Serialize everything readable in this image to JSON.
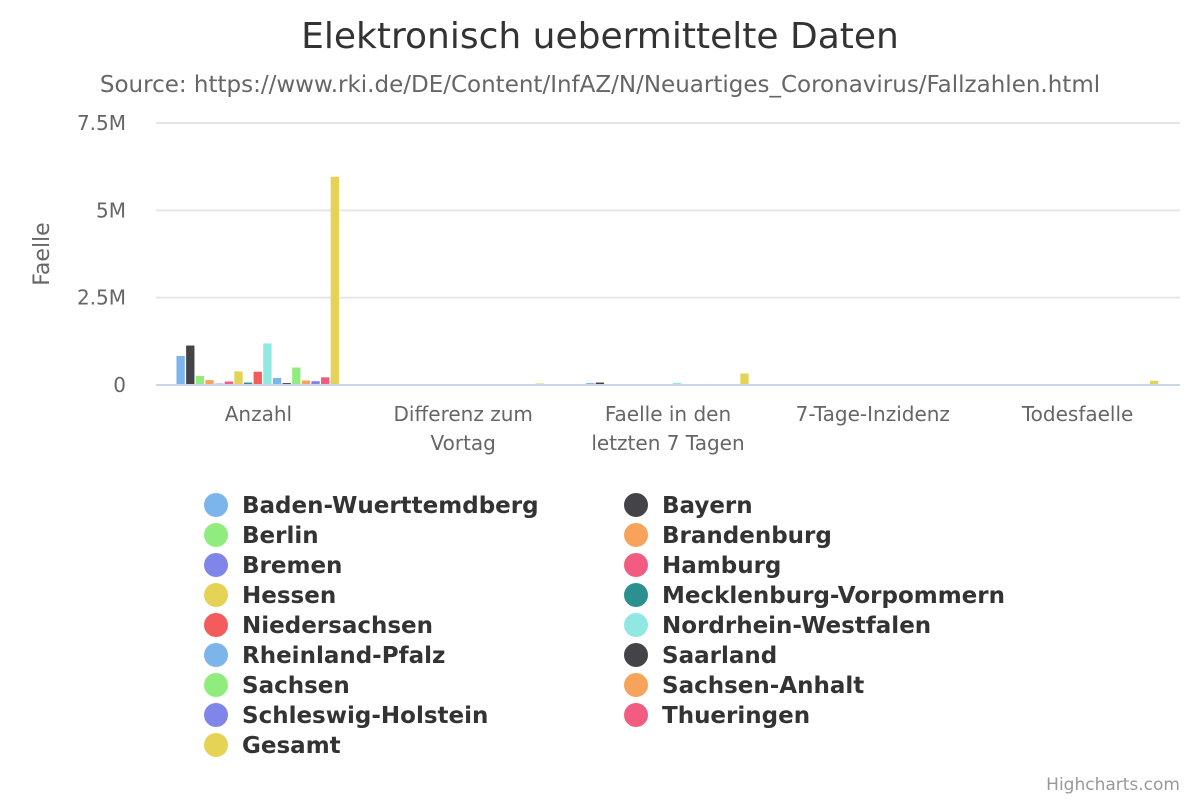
{
  "chart_data": {
    "type": "bar",
    "title": "Elektronisch uebermittelte Daten",
    "subtitle": "Source: https://www.rki.de/DE/Content/InfAZ/N/Neuartiges_Coronavirus/Fallzahlen.html",
    "ylabel": "Faelle",
    "ylim": [
      0,
      7500000
    ],
    "yticks": [
      {
        "value": 0,
        "label": "0"
      },
      {
        "value": 2500000,
        "label": "2.5M"
      },
      {
        "value": 5000000,
        "label": "5M"
      },
      {
        "value": 7500000,
        "label": "7.5M"
      }
    ],
    "categories": [
      [
        "Anzahl"
      ],
      [
        "Differenz zum",
        "Vortag"
      ],
      [
        "Faelle in den",
        "letzten 7 Tagen"
      ],
      [
        "7-Tage-Inzidenz"
      ],
      [
        "Todesfaelle"
      ]
    ],
    "grid": true,
    "legend_placement": "bottom",
    "series": [
      {
        "name": "Baden-Wuerttemdberg",
        "color": "#7cb5ec",
        "values": [
          830000,
          7000,
          55000,
          500,
          16000
        ]
      },
      {
        "name": "Bayern",
        "color": "#434348",
        "values": [
          1130000,
          9000,
          70000,
          500,
          22000
        ]
      },
      {
        "name": "Berlin",
        "color": "#90ed7d",
        "values": [
          260000,
          1500,
          15000,
          400,
          5000
        ]
      },
      {
        "name": "Brandenburg",
        "color": "#f7a35c",
        "values": [
          140000,
          1200,
          10000,
          400,
          5500
        ]
      },
      {
        "name": "Bremen",
        "color": "#8085e9",
        "values": [
          40000,
          300,
          2000,
          300,
          700
        ]
      },
      {
        "name": "Hamburg",
        "color": "#f15c80",
        "values": [
          100000,
          800,
          6000,
          300,
          2000
        ]
      },
      {
        "name": "Hessen",
        "color": "#e4d354",
        "values": [
          390000,
          3000,
          25000,
          400,
          9000
        ]
      },
      {
        "name": "Mecklenburg-Vorpommern",
        "color": "#2b908f",
        "values": [
          70000,
          800,
          6000,
          400,
          1500
        ]
      },
      {
        "name": "Niedersachsen",
        "color": "#f45b5b",
        "values": [
          380000,
          3000,
          24000,
          300,
          7500
        ]
      },
      {
        "name": "Nordrhein-Westfalen",
        "color": "#91e8e1",
        "values": [
          1190000,
          9000,
          60000,
          300,
          22000
        ]
      },
      {
        "name": "Rheinland-Pfalz",
        "color": "#7cb5ec",
        "values": [
          200000,
          1500,
          12000,
          300,
          4500
        ]
      },
      {
        "name": "Saarland",
        "color": "#434348",
        "values": [
          55000,
          400,
          3000,
          300,
          1100
        ]
      },
      {
        "name": "Sachsen",
        "color": "#90ed7d",
        "values": [
          500000,
          3500,
          30000,
          600,
          14000
        ]
      },
      {
        "name": "Sachsen-Anhalt",
        "color": "#f7a35c",
        "values": [
          130000,
          900,
          8000,
          400,
          4000
        ]
      },
      {
        "name": "Schleswig-Holstein",
        "color": "#8085e9",
        "values": [
          110000,
          1000,
          7000,
          300,
          2000
        ]
      },
      {
        "name": "Thueringen",
        "color": "#f15c80",
        "values": [
          220000,
          1500,
          14000,
          600,
          5000
        ]
      },
      {
        "name": "Gesamt",
        "color": "#e4d354",
        "values": [
          5960000,
          44000,
          330000,
          400,
          120000
        ]
      }
    ],
    "credits": "Highcharts.com"
  }
}
